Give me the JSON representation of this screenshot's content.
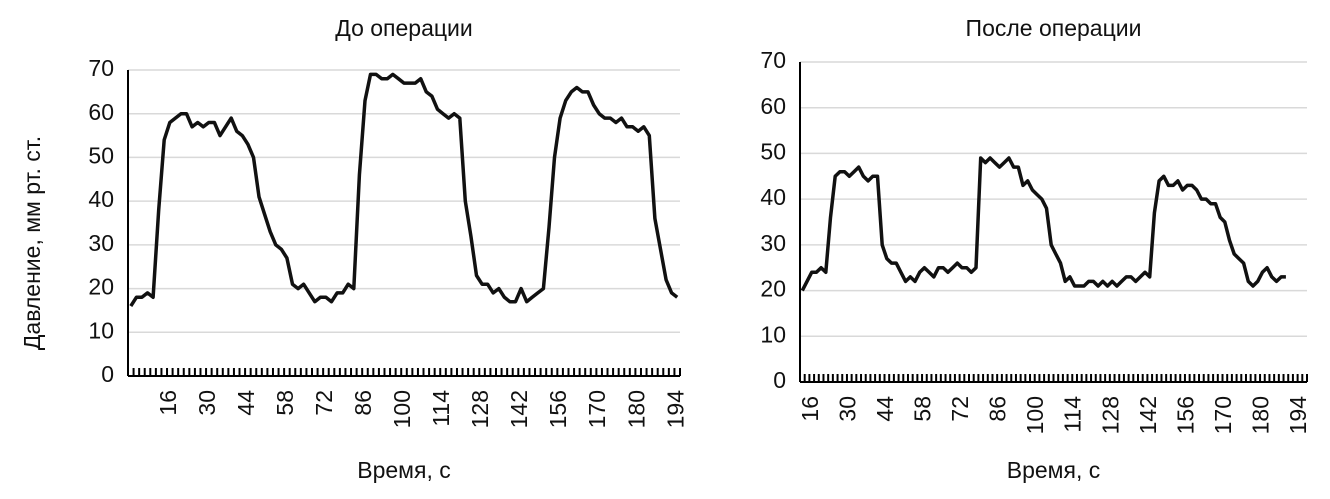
{
  "chart_data": [
    {
      "type": "line",
      "title": "До операции",
      "x_label": "Время, с",
      "y_label": "Давление, мм рт. ст.",
      "categories": [
        null,
        null,
        null,
        null,
        null,
        null,
        null,
        "16",
        null,
        null,
        null,
        null,
        null,
        null,
        "30",
        null,
        null,
        null,
        null,
        null,
        null,
        "44",
        null,
        null,
        null,
        null,
        null,
        null,
        "58",
        null,
        null,
        null,
        null,
        null,
        null,
        "72",
        null,
        null,
        null,
        null,
        null,
        null,
        "86",
        null,
        null,
        null,
        null,
        null,
        null,
        "100",
        null,
        null,
        null,
        null,
        null,
        null,
        "114",
        null,
        null,
        null,
        null,
        null,
        null,
        "128",
        null,
        null,
        null,
        null,
        null,
        null,
        "142",
        null,
        null,
        null,
        null,
        null,
        null,
        "156",
        null,
        null,
        null,
        null,
        null,
        null,
        "170",
        null,
        null,
        null,
        null,
        null,
        null,
        "180",
        null,
        null,
        null,
        null,
        null,
        null,
        "194"
      ],
      "series": [
        {
          "color": "#111111",
          "values": [
            16,
            18,
            18,
            19,
            18,
            38,
            54,
            58,
            59,
            60,
            60,
            57,
            58,
            57,
            58,
            58,
            55,
            57,
            59,
            56,
            55,
            53,
            50,
            41,
            37,
            33,
            30,
            29,
            27,
            21,
            20,
            21,
            19,
            17,
            18,
            18,
            17,
            19,
            19,
            21,
            20,
            46,
            63,
            69,
            69,
            68,
            68,
            69,
            68,
            67,
            67,
            67,
            68,
            65,
            64,
            61,
            60,
            59,
            60,
            59,
            40,
            32,
            23,
            21,
            21,
            19,
            20,
            18,
            17,
            17,
            20,
            17,
            18,
            19,
            20,
            34,
            50,
            59,
            63,
            65,
            66,
            65,
            65,
            62,
            60,
            59,
            59,
            58,
            59,
            57,
            57,
            56,
            57,
            55,
            36,
            29,
            22,
            19,
            18
          ]
        }
      ],
      "ylim": [
        0,
        70
      ],
      "yticks": [
        0,
        10,
        20,
        30,
        40,
        50,
        60,
        70
      ],
      "grid": true
    },
    {
      "type": "line",
      "title": "После операции",
      "x_label": "Время, с",
      "categories": [
        null,
        null,
        "16",
        null,
        null,
        null,
        null,
        null,
        null,
        null,
        "30",
        null,
        null,
        null,
        null,
        null,
        null,
        null,
        "44",
        null,
        null,
        null,
        null,
        null,
        null,
        null,
        "58",
        null,
        null,
        null,
        null,
        null,
        null,
        null,
        "72",
        null,
        null,
        null,
        null,
        null,
        null,
        null,
        "86",
        null,
        null,
        null,
        null,
        null,
        null,
        null,
        "100",
        null,
        null,
        null,
        null,
        null,
        null,
        null,
        "114",
        null,
        null,
        null,
        null,
        null,
        null,
        null,
        "128",
        null,
        null,
        null,
        null,
        null,
        null,
        null,
        "142",
        null,
        null,
        null,
        null,
        null,
        null,
        null,
        "156",
        null,
        null,
        null,
        null,
        null,
        null,
        null,
        "170",
        null,
        null,
        null,
        null,
        null,
        null,
        null,
        "180",
        null,
        null,
        null,
        null,
        null,
        null,
        null,
        "194",
        null
      ],
      "series": [
        {
          "color": "#111111",
          "values": [
            20,
            22,
            24,
            24,
            25,
            24,
            36,
            45,
            46,
            46,
            45,
            46,
            47,
            45,
            44,
            45,
            45,
            30,
            27,
            26,
            26,
            24,
            22,
            23,
            22,
            24,
            25,
            24,
            23,
            25,
            25,
            24,
            25,
            26,
            25,
            25,
            24,
            25,
            49,
            48,
            49,
            48,
            47,
            48,
            49,
            47,
            47,
            43,
            44,
            42,
            41,
            40,
            38,
            30,
            28,
            26,
            22,
            23,
            21,
            21,
            21,
            22,
            22,
            21,
            22,
            21,
            22,
            21,
            22,
            23,
            23,
            22,
            23,
            24,
            23,
            37,
            44,
            45,
            43,
            43,
            44,
            42,
            43,
            43,
            42,
            40,
            40,
            39,
            39,
            36,
            35,
            31,
            28,
            27,
            26,
            22,
            21,
            22,
            24,
            25,
            23,
            22,
            23,
            23,
            null,
            null,
            null,
            null
          ]
        }
      ],
      "ylim": [
        0,
        70
      ],
      "yticks": [
        0,
        10,
        20,
        30,
        40,
        50,
        60,
        70
      ],
      "grid": true
    }
  ]
}
